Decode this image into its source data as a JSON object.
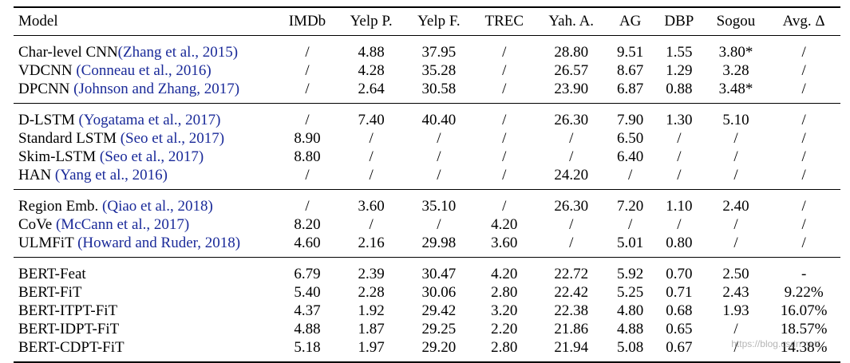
{
  "table": {
    "headers": [
      "Model",
      "IMDb",
      "Yelp P.",
      "Yelp F.",
      "TREC",
      "Yah. A.",
      "AG",
      "DBP",
      "Sogou",
      "Avg. Δ"
    ],
    "groups": [
      [
        {
          "model": "Char-level CNN",
          "cite": "(Zhang et al., 2015)",
          "space": false,
          "cells": [
            "/",
            "4.88",
            "37.95",
            "/",
            "28.80",
            "9.51",
            "1.55",
            "3.80*",
            "/"
          ],
          "bold": []
        },
        {
          "model": "VDCNN",
          "cite": "(Conneau et al., 2016)",
          "space": true,
          "cells": [
            "/",
            "4.28",
            "35.28",
            "/",
            "26.57",
            "8.67",
            "1.29",
            "3.28",
            "/"
          ],
          "bold": []
        },
        {
          "model": "DPCNN",
          "cite": "(Johnson and Zhang, 2017)",
          "space": true,
          "cells": [
            "/",
            "2.64",
            "30.58",
            "/",
            "23.90",
            "6.87",
            "0.88",
            "3.48*",
            "/"
          ],
          "bold": []
        }
      ],
      [
        {
          "model": "D-LSTM",
          "cite": "(Yogatama et al., 2017)",
          "space": true,
          "cells": [
            "/",
            "7.40",
            "40.40",
            "/",
            "26.30",
            "7.90",
            "1.30",
            "5.10",
            "/"
          ],
          "bold": []
        },
        {
          "model": "Standard LSTM",
          "cite": "(Seo et al., 2017)",
          "space": true,
          "cells": [
            "8.90",
            "/",
            "/",
            "/",
            "/",
            "6.50",
            "/",
            "/",
            "/"
          ],
          "bold": []
        },
        {
          "model": "Skim-LSTM",
          "cite": "(Seo et al., 2017)",
          "space": true,
          "cells": [
            "8.80",
            "/",
            "/",
            "/",
            "/",
            "6.40",
            "/",
            "/",
            "/"
          ],
          "bold": []
        },
        {
          "model": "HAN",
          "cite": "(Yang et al., 2016)",
          "space": true,
          "cells": [
            "/",
            "/",
            "/",
            "/",
            "24.20",
            "/",
            "/",
            "/",
            "/"
          ],
          "bold": []
        }
      ],
      [
        {
          "model": "Region Emb.",
          "cite": "(Qiao et al., 2018)",
          "space": true,
          "cells": [
            "/",
            "3.60",
            "35.10",
            "/",
            "26.30",
            "7.20",
            "1.10",
            "2.40",
            "/"
          ],
          "bold": []
        },
        {
          "model": "CoVe",
          "cite": "(McCann et al., 2017)",
          "space": true,
          "cells": [
            "8.20",
            "/",
            "/",
            "4.20",
            "/",
            "/",
            "/",
            "/",
            "/"
          ],
          "bold": []
        },
        {
          "model": "ULMFiT",
          "cite": "(Howard and Ruder, 2018)",
          "space": true,
          "cells": [
            "4.60",
            "2.16",
            "29.98",
            "3.60",
            "/",
            "5.01",
            "0.80",
            "/",
            "/"
          ],
          "bold": []
        }
      ],
      [
        {
          "model": "BERT-Feat",
          "cite": "",
          "space": false,
          "cells": [
            "6.79",
            "2.39",
            "30.47",
            "4.20",
            "22.72",
            "5.92",
            "0.70",
            "2.50",
            "-"
          ],
          "bold": []
        },
        {
          "model": "BERT-FiT",
          "cite": "",
          "space": false,
          "cells": [
            "5.40",
            "2.28",
            "30.06",
            "2.80",
            "22.42",
            "5.25",
            "0.71",
            "2.43",
            "9.22%"
          ],
          "bold": []
        },
        {
          "model": "BERT-ITPT-FiT",
          "cite": "",
          "space": false,
          "cells": [
            "4.37",
            "1.92",
            "29.42",
            "3.20",
            "22.38",
            "4.80",
            "0.68",
            "1.93",
            "16.07%"
          ],
          "bold": [
            0,
            5,
            7
          ]
        },
        {
          "model": "BERT-IDPT-FiT",
          "cite": "",
          "space": false,
          "cells": [
            "4.88",
            "1.87",
            "29.25",
            "2.20",
            "21.86",
            "4.88",
            "0.65",
            "/",
            "18.57%"
          ],
          "bold": [
            1,
            3,
            4,
            6,
            8
          ]
        },
        {
          "model": "BERT-CDPT-FiT",
          "cite": "",
          "space": false,
          "cells": [
            "5.18",
            "1.97",
            "29.20",
            "2.80",
            "21.94",
            "5.08",
            "0.67",
            "/",
            "14.38%"
          ],
          "bold": [
            2
          ]
        }
      ]
    ]
  },
  "watermark": "https://blog.csdn.net/..."
}
